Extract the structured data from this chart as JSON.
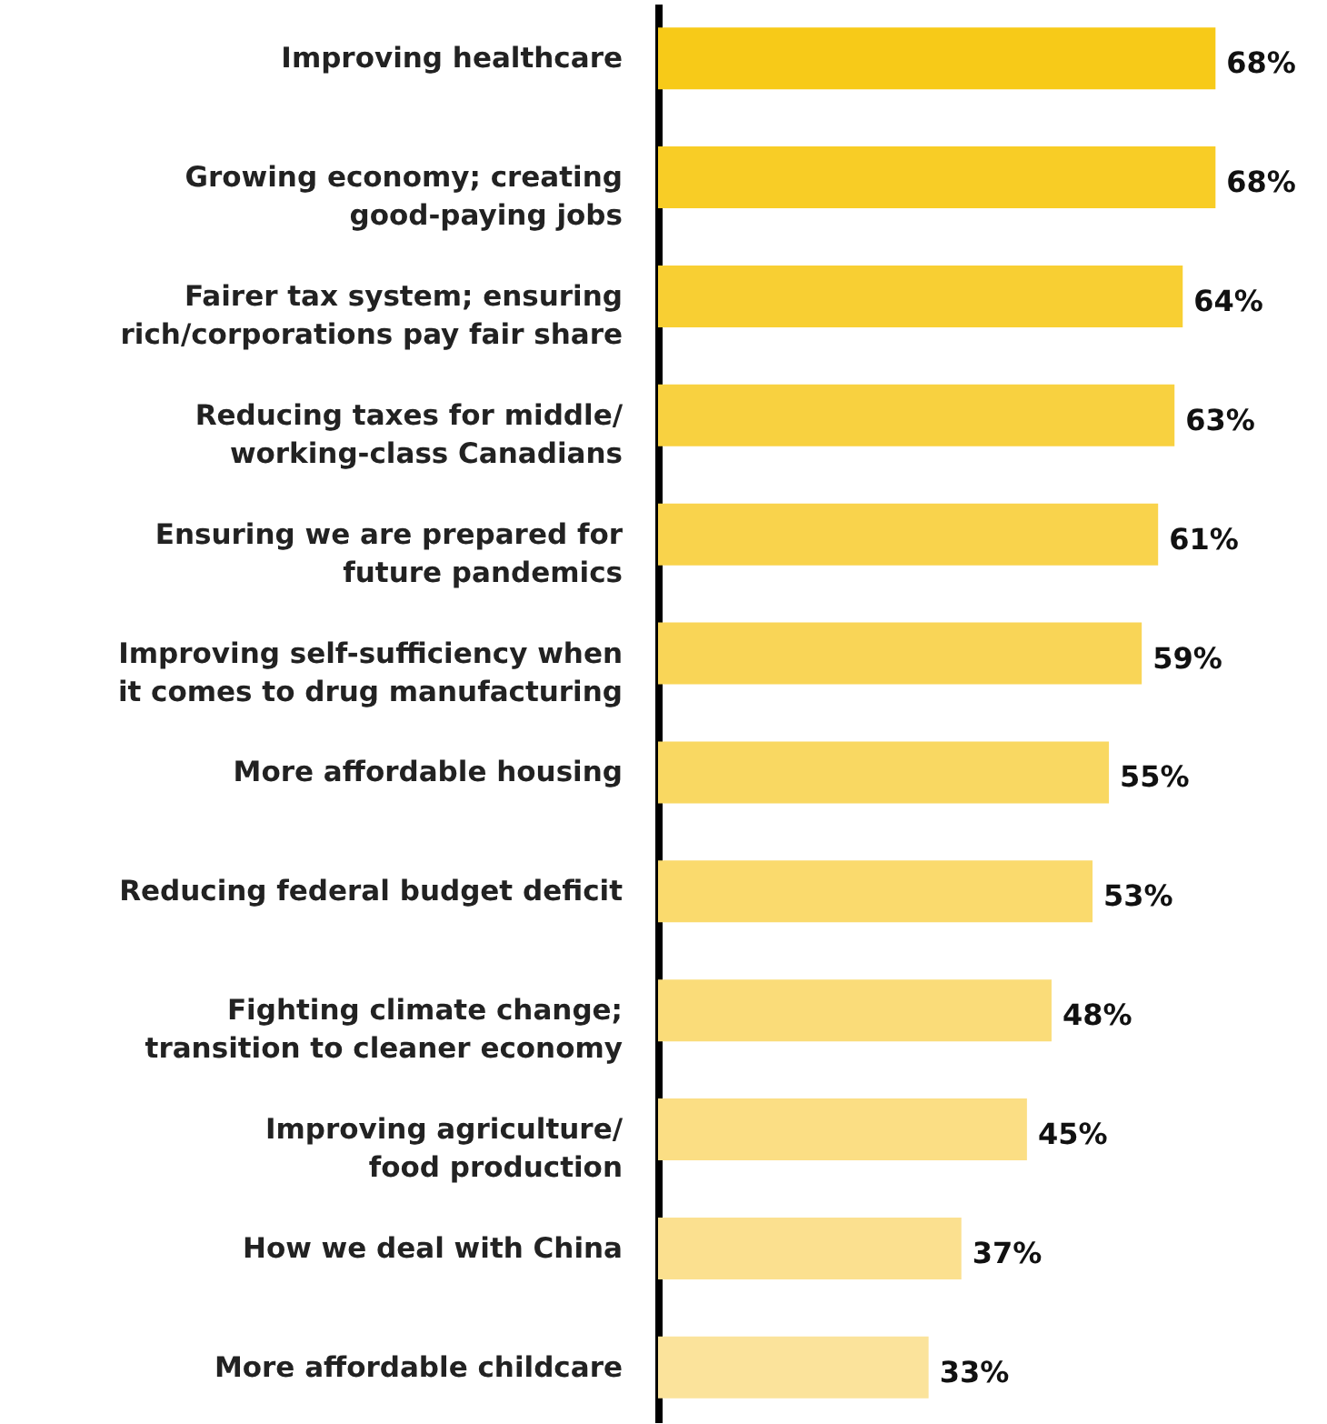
{
  "chart_data": {
    "type": "bar",
    "orientation": "horizontal",
    "categories": [
      "Improving healthcare",
      "Growing economy; creating\ngood-paying jobs",
      "Fairer tax system; ensuring\nrich/corporations pay fair share",
      "Reducing taxes for middle/\nworking-class Canadians",
      "Ensuring we are prepared for\nfuture pandemics",
      "Improving self-sufficiency when\nit comes to drug manufacturing",
      "More affordable housing",
      "Reducing federal budget deficit",
      "Fighting climate change;\ntransition to cleaner economy",
      "Improving agriculture/\nfood production",
      "How we deal with China",
      "More affordable childcare"
    ],
    "values": [
      68,
      68,
      64,
      63,
      61,
      59,
      55,
      53,
      48,
      45,
      37,
      33
    ],
    "value_labels": [
      "68%",
      "68%",
      "64%",
      "63%",
      "61%",
      "59%",
      "55%",
      "53%",
      "48%",
      "45%",
      "37%",
      "33%"
    ],
    "colors": [
      "#f7ca18",
      "#f8cd26",
      "#f8cf33",
      "#f8d140",
      "#f9d34c",
      "#f9d557",
      "#f9d862",
      "#fada6d",
      "#fadc79",
      "#fbde84",
      "#fbe08f",
      "#fbe39b"
    ]
  }
}
